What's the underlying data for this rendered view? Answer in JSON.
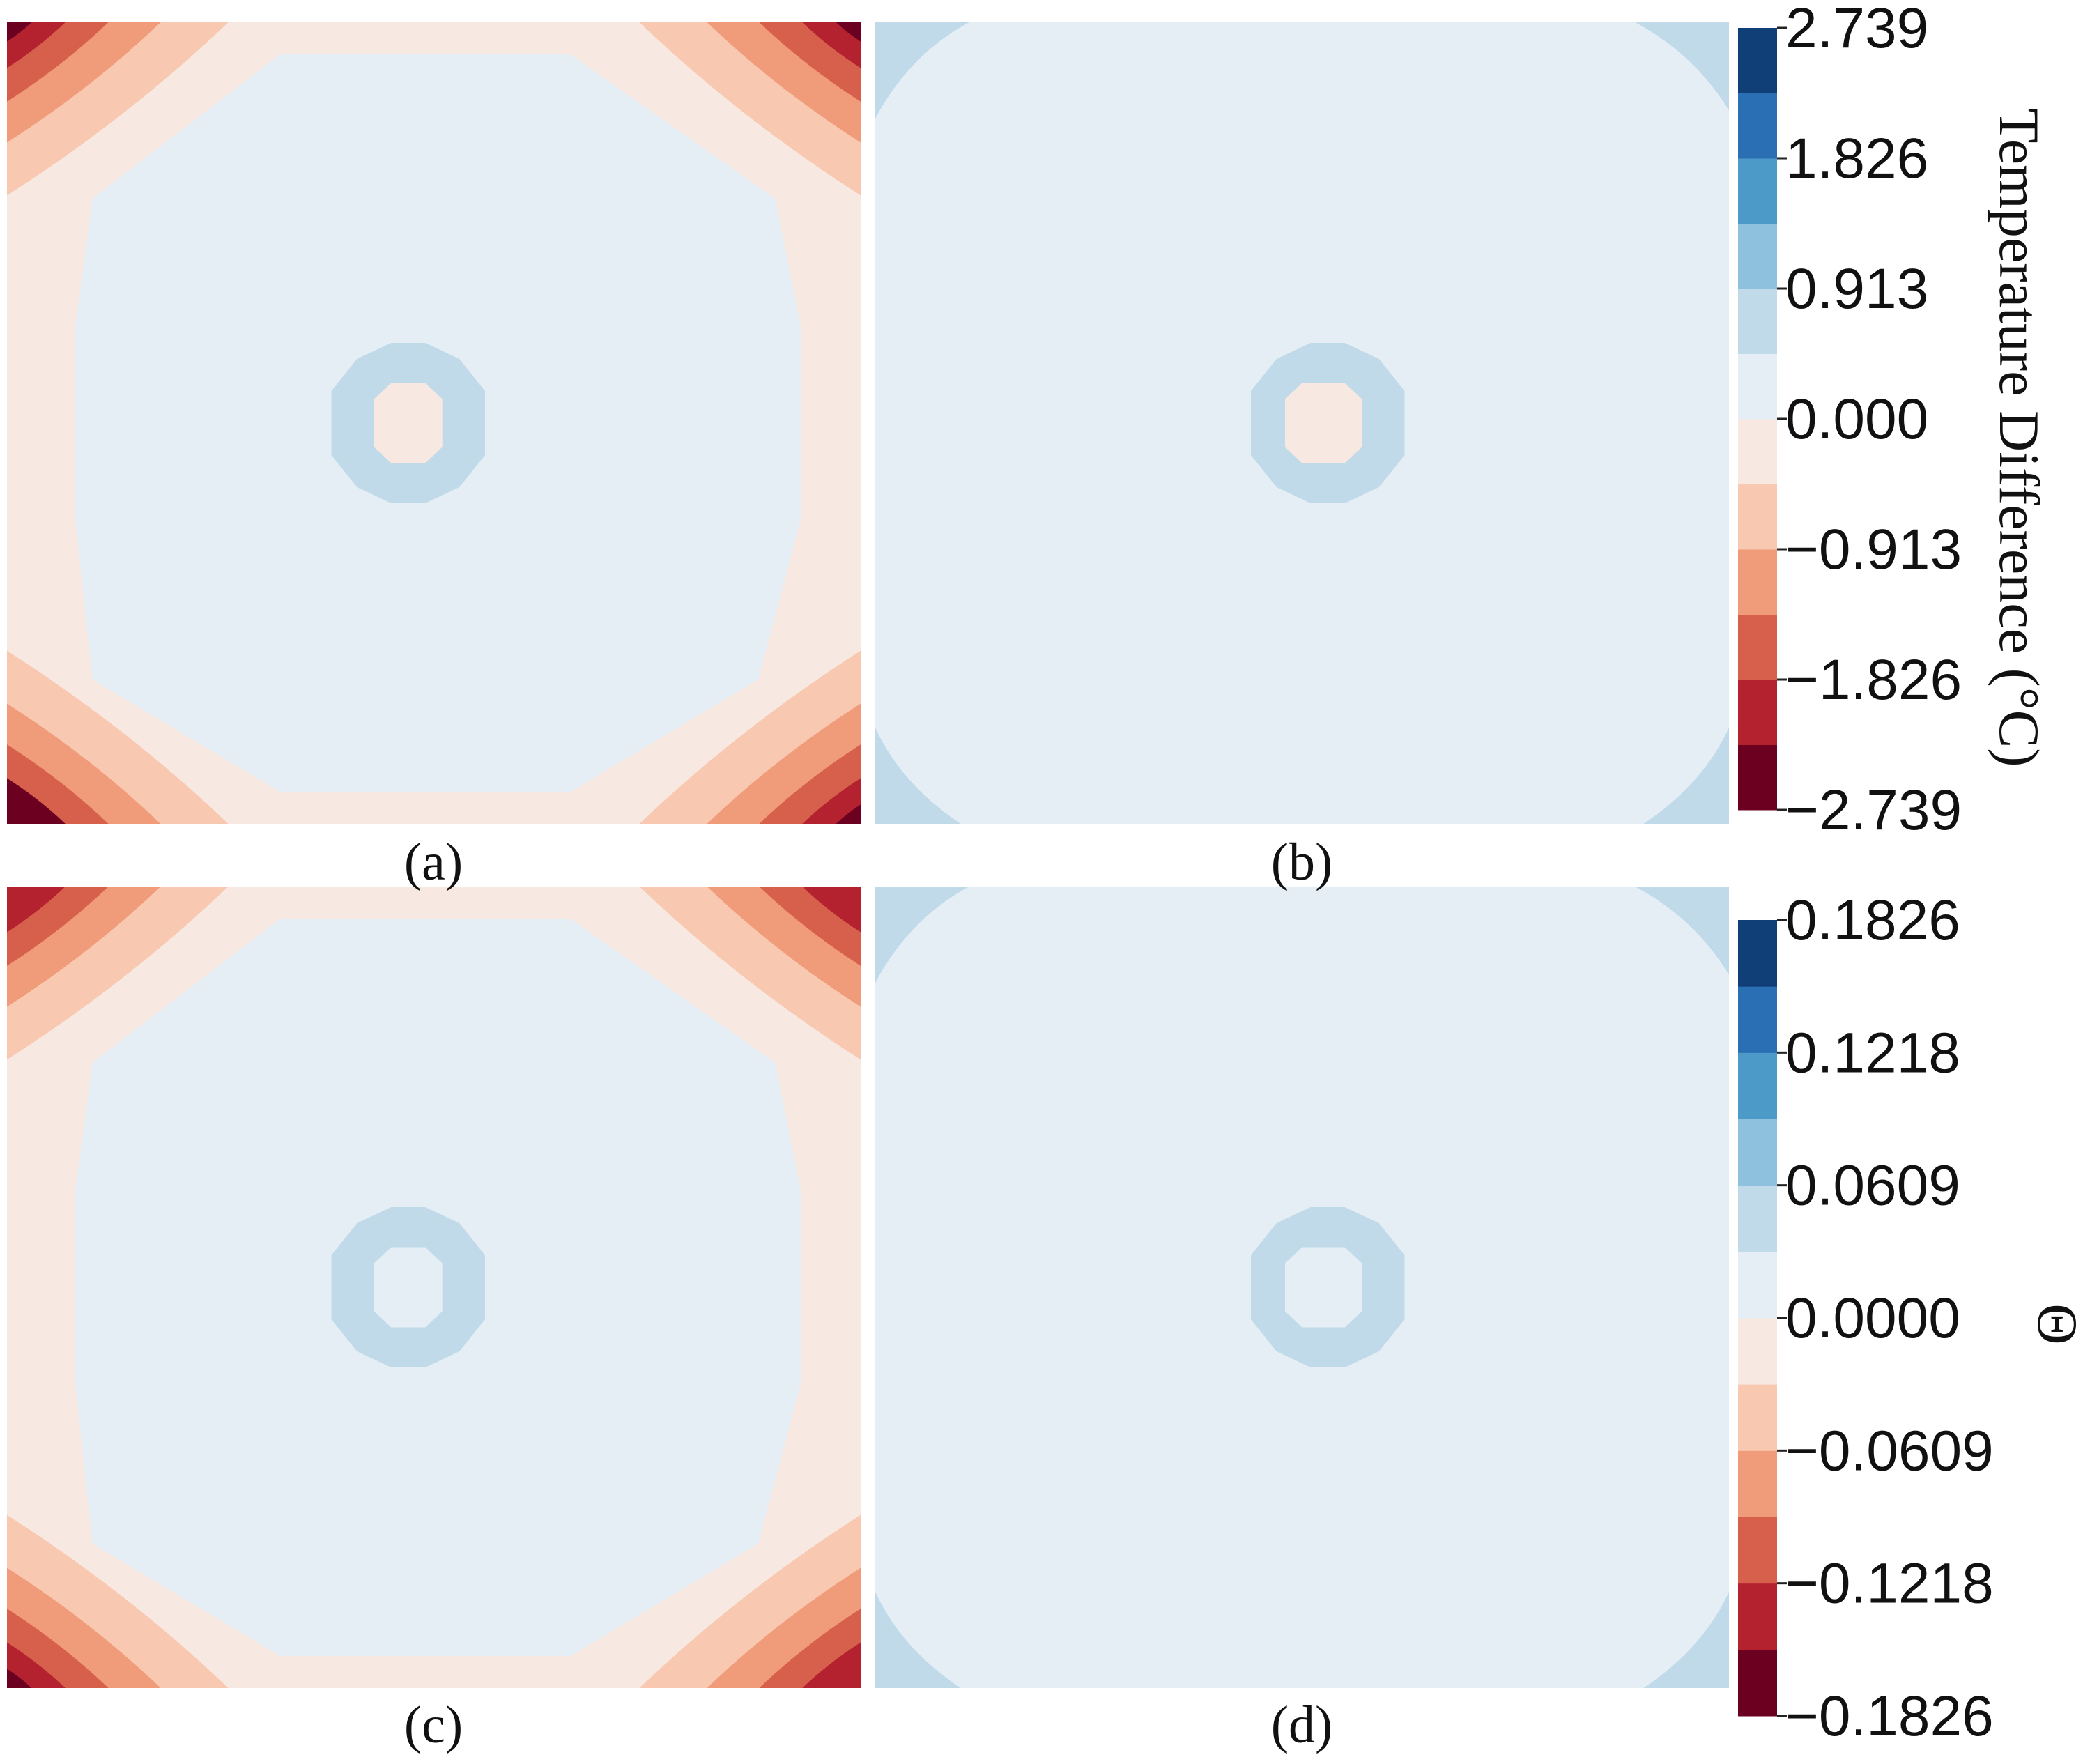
{
  "chart_data": [
    {
      "type": "heatmap",
      "panel_label": "(a)",
      "colorbar": "temperature",
      "pattern": "red_corners_with_central_ring",
      "center_value": -0.2,
      "ring_value": 0.5,
      "plateau_value": 0.2,
      "corner_values": {
        "top_left": -2.3,
        "top_right": -2.3,
        "bottom_left": -2.739,
        "bottom_right": -2.3
      }
    },
    {
      "type": "heatmap",
      "panel_label": "(b)",
      "colorbar": "temperature",
      "pattern": "near_zero_with_central_ring",
      "center_value": -0.2,
      "ring_value": 0.5,
      "plateau_value": 0.2,
      "corner_values": {
        "top_left": 0.5,
        "top_right": 0.5,
        "bottom_left": 0.5,
        "bottom_right": 0.5
      }
    },
    {
      "type": "heatmap",
      "panel_label": "(c)",
      "colorbar": "theta",
      "pattern": "red_corners_with_central_ring",
      "center_value": 0.01,
      "ring_value": 0.035,
      "plateau_value": 0.01,
      "corner_values": {
        "top_left": -0.15,
        "top_right": -0.15,
        "bottom_left": -0.1826,
        "bottom_right": -0.15
      }
    },
    {
      "type": "heatmap",
      "panel_label": "(d)",
      "colorbar": "theta",
      "pattern": "near_zero_with_central_ring",
      "center_value": 0.01,
      "ring_value": 0.035,
      "plateau_value": 0.01,
      "corner_values": {
        "top_left": 0.035,
        "top_right": 0.035,
        "bottom_left": 0.035,
        "bottom_right": 0.035
      }
    }
  ],
  "colorbars": {
    "temperature": {
      "label": "Temperature Difference (°C)",
      "min": -2.739,
      "max": 2.739,
      "tick_labels": [
        "2.739",
        "1.826",
        "0.913",
        "0.000",
        "−0.913",
        "−1.826",
        "−2.739"
      ]
    },
    "theta": {
      "label": "Θ",
      "min": -0.1826,
      "max": 0.1826,
      "tick_labels": [
        "0.1826",
        "0.1218",
        "0.0609",
        "0.0000",
        "−0.0609",
        "−0.1218",
        "−0.1826"
      ]
    }
  },
  "colormap": {
    "name": "RdBu",
    "levels": 12,
    "colors": [
      "#6b0020",
      "#b5222f",
      "#d7604d",
      "#f09b7a",
      "#f8c8b0",
      "#f7e8e1",
      "#e5eef4",
      "#c0dae9",
      "#8ec1de",
      "#4c9ac8",
      "#2a6fb4",
      "#103f77"
    ]
  }
}
